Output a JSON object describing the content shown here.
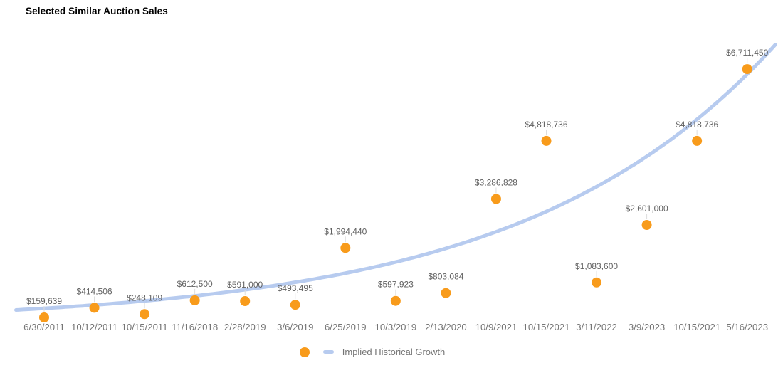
{
  "title": "Selected Similar Auction Sales",
  "colors": {
    "point": "#F89B1B",
    "trend_line": "#B7CBEF",
    "value_label_text": "#616161",
    "axis_text": "#757575",
    "leader_line": "#DDDDDD",
    "title_text": "#000000",
    "background": "#FFFFFF"
  },
  "chart_data": {
    "type": "scatter",
    "title": "Selected Similar Auction Sales",
    "xlabel": "",
    "ylabel": "",
    "x_axis_type": "category",
    "grid": false,
    "legend_position": "bottom",
    "ylim": [
      0,
      7500000
    ],
    "points": [
      {
        "date": "6/30/2011",
        "value": 159639,
        "label": "$159,639"
      },
      {
        "date": "10/12/2011",
        "value": 414506,
        "label": "$414,506"
      },
      {
        "date": "10/15/2011",
        "value": 248109,
        "label": "$248,109"
      },
      {
        "date": "11/16/2018",
        "value": 612500,
        "label": "$612,500"
      },
      {
        "date": "2/28/2019",
        "value": 591000,
        "label": "$591,000"
      },
      {
        "date": "3/6/2019",
        "value": 493495,
        "label": "$493,495"
      },
      {
        "date": "6/25/2019",
        "value": 1994440,
        "label": "$1,994,440"
      },
      {
        "date": "10/3/2019",
        "value": 597923,
        "label": "$597,923"
      },
      {
        "date": "2/13/2020",
        "value": 803084,
        "label": "$803,084"
      },
      {
        "date": "10/9/2021",
        "value": 3286828,
        "label": "$3,286,828"
      },
      {
        "date": "10/15/2021",
        "value": 4818736,
        "label": "$4,818,736"
      },
      {
        "date": "3/11/2022",
        "value": 1083600,
        "label": "$1,083,600"
      },
      {
        "date": "3/9/2023",
        "value": 2601000,
        "label": "$2,601,000"
      },
      {
        "date": "10/15/2021",
        "value": 4818736,
        "label": "$4,818,736"
      },
      {
        "date": "5/16/2023",
        "value": 6711450,
        "label": "$6,711,450"
      }
    ],
    "trend": {
      "name": "Implied Historical Growth",
      "shape": "exponential",
      "start_value": 400000,
      "growth_per_index": 0.2
    }
  }
}
